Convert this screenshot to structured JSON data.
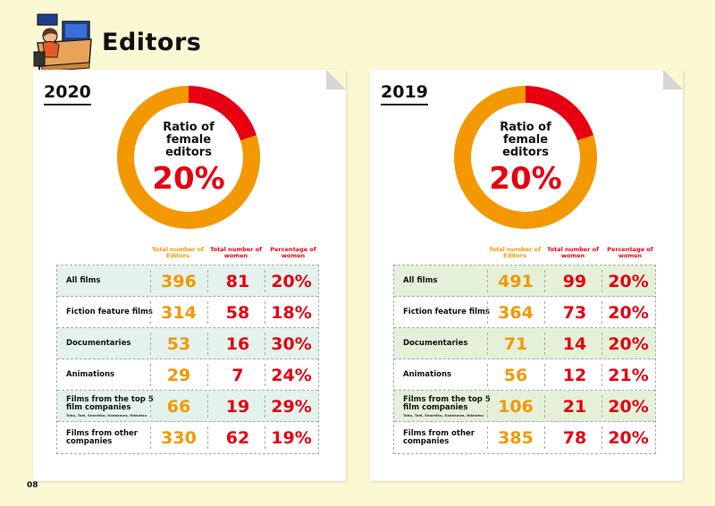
{
  "title": "Editors",
  "page_number": "08",
  "colors": {
    "orange": "#f39800",
    "red": "#e60012",
    "background": "#fbf8d4"
  },
  "columns": {
    "total": "Total number of Editors",
    "women": "Total number of women",
    "percentage": "Percentage of women"
  },
  "chart_data": [
    {
      "type": "pie",
      "title": "2020",
      "center_label": "Ratio of female editors",
      "center_value": "20%",
      "slices": [
        {
          "label": "women",
          "value": 20,
          "color": "#e60012"
        },
        {
          "label": "men",
          "value": 80,
          "color": "#f39800"
        }
      ],
      "rows": [
        {
          "label": "All films",
          "sub": "",
          "total": "396",
          "women": "81",
          "pct": "20%"
        },
        {
          "label": "Fiction feature films",
          "sub": "",
          "total": "314",
          "women": "58",
          "pct": "18%"
        },
        {
          "label": "Documentaries",
          "sub": "",
          "total": "53",
          "women": "16",
          "pct": "30%"
        },
        {
          "label": "Animations",
          "sub": "",
          "total": "29",
          "women": "7",
          "pct": "24%"
        },
        {
          "label": "Films from the top 5 film companies",
          "sub": "Toho, Toei, Shochiku, Kadokawa, Nikkatsu",
          "total": "66",
          "women": "19",
          "pct": "29%"
        },
        {
          "label": "Films from other companies",
          "sub": "",
          "total": "330",
          "women": "62",
          "pct": "19%"
        }
      ]
    },
    {
      "type": "pie",
      "title": "2019",
      "center_label": "Ratio of female editors",
      "center_value": "20%",
      "slices": [
        {
          "label": "women",
          "value": 20,
          "color": "#e60012"
        },
        {
          "label": "men",
          "value": 80,
          "color": "#f39800"
        }
      ],
      "rows": [
        {
          "label": "All films",
          "sub": "",
          "total": "491",
          "women": "99",
          "pct": "20%"
        },
        {
          "label": "Fiction feature films",
          "sub": "",
          "total": "364",
          "women": "73",
          "pct": "20%"
        },
        {
          "label": "Documentaries",
          "sub": "",
          "total": "71",
          "women": "14",
          "pct": "20%"
        },
        {
          "label": "Animations",
          "sub": "",
          "total": "56",
          "women": "12",
          "pct": "21%"
        },
        {
          "label": "Films from the top 5 film companies",
          "sub": "Toho, Toei, Shochiku, Kadokawa, Nikkatsu",
          "total": "106",
          "women": "21",
          "pct": "20%"
        },
        {
          "label": "Films from other companies",
          "sub": "",
          "total": "385",
          "women": "78",
          "pct": "20%"
        }
      ]
    }
  ]
}
